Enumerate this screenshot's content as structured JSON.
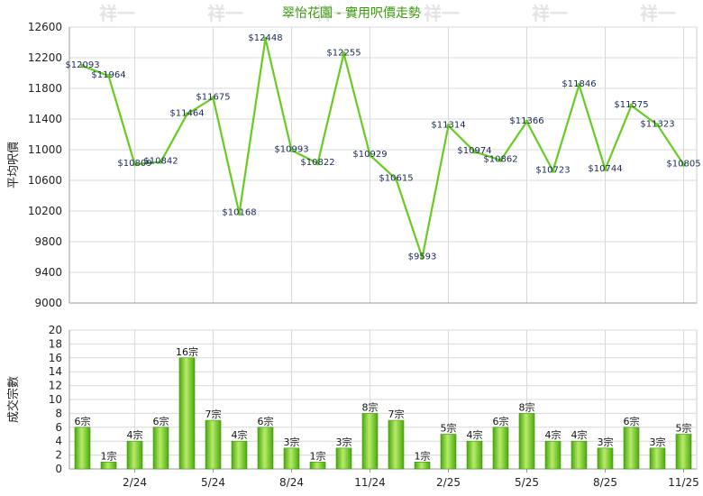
{
  "title": "翠怡花園 - 實用呎價走勢",
  "watermark": "祥一",
  "colors": {
    "line": "#66cc22",
    "bar_light": "#b8ec6a",
    "bar_dark": "#4aa80e",
    "title": "#3a9a0a",
    "grid": "#d8d8d8"
  },
  "chart_data": [
    {
      "type": "line",
      "ylabel": "平均呎價",
      "ylim": [
        9000,
        12600
      ],
      "yticks": [
        9000,
        9400,
        9800,
        10200,
        10600,
        11000,
        11400,
        11800,
        12200,
        12600
      ],
      "x_tick_labels": [
        "2/24",
        "5/24",
        "8/24",
        "11/24",
        "2/25",
        "5/25",
        "8/25",
        "11/25"
      ],
      "series": [
        {
          "values": [
            12093,
            11964,
            10809,
            10842,
            11464,
            11675,
            10168,
            12448,
            10993,
            10822,
            12255,
            10929,
            10615,
            9593,
            11314,
            10974,
            10862,
            11366,
            10723,
            11846,
            10744,
            11575,
            11323,
            10805
          ],
          "labels": [
            "$12093",
            "$11964",
            "$10809",
            "$10842",
            "$11464",
            "$11675",
            "$10168",
            "$12448",
            "$10993",
            "$10822",
            "$12255",
            "$10929",
            "$10615",
            "$9593",
            "$11314",
            "$10974",
            "$10862",
            "$11366",
            "$10723",
            "$11846",
            "$10744",
            "$11575",
            "$11323",
            "$10805"
          ]
        }
      ],
      "grid": true
    },
    {
      "type": "bar",
      "ylabel": "成交宗數",
      "ylim": [
        0,
        20
      ],
      "yticks": [
        0,
        2,
        4,
        6,
        8,
        10,
        12,
        14,
        16,
        18,
        20
      ],
      "x_tick_labels": [
        "2/24",
        "5/24",
        "8/24",
        "11/24",
        "2/25",
        "5/25",
        "8/25",
        "11/25"
      ],
      "values": [
        6,
        1,
        4,
        6,
        16,
        7,
        4,
        6,
        3,
        1,
        3,
        8,
        7,
        1,
        5,
        4,
        6,
        8,
        4,
        4,
        3,
        6,
        3,
        5
      ],
      "labels": [
        "6宗",
        "1宗",
        "4宗",
        "6宗",
        "16宗",
        "7宗",
        "4宗",
        "6宗",
        "3宗",
        "1宗",
        "3宗",
        "8宗",
        "7宗",
        "1宗",
        "5宗",
        "4宗",
        "6宗",
        "8宗",
        "4宗",
        "4宗",
        "3宗",
        "6宗",
        "3宗",
        "5宗"
      ],
      "grid": true
    }
  ]
}
